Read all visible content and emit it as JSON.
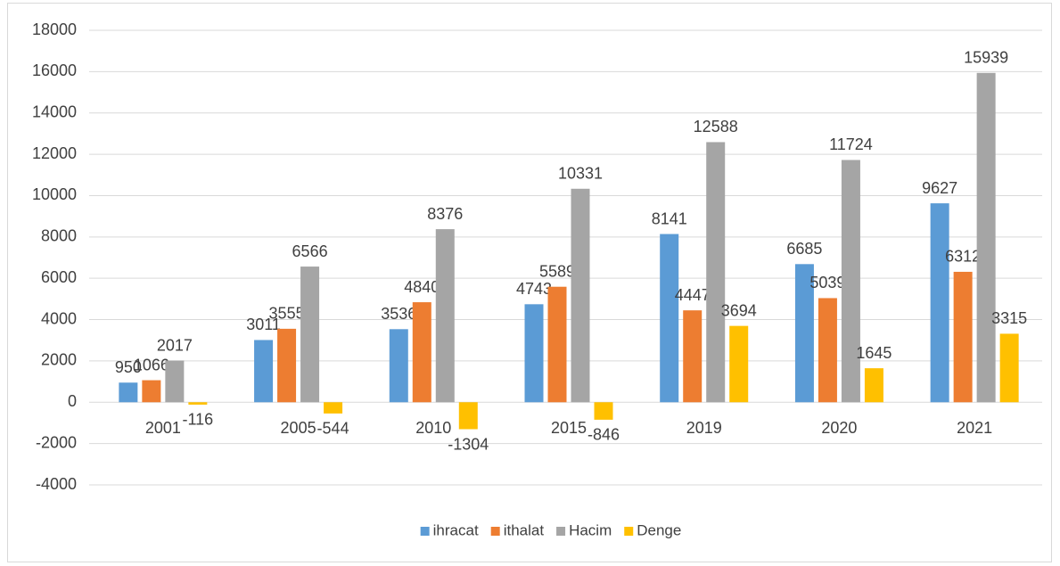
{
  "chart_data": {
    "type": "bar",
    "categories": [
      "2001",
      "2005",
      "2010",
      "2015",
      "2019",
      "2020",
      "2021"
    ],
    "series": [
      {
        "name": "ihracat",
        "color": "#5b9bd5",
        "values": [
          950,
          3011,
          3536,
          4743,
          8141,
          6685,
          9627
        ]
      },
      {
        "name": "ithalat",
        "color": "#ed7d31",
        "values": [
          1066,
          3555,
          4840,
          5589,
          4447,
          5039,
          6312
        ]
      },
      {
        "name": "Hacim",
        "color": "#a5a5a5",
        "values": [
          2017,
          6566,
          8376,
          10331,
          12588,
          11724,
          15939
        ]
      },
      {
        "name": "Denge",
        "color": "#ffc000",
        "values": [
          -116,
          -544,
          -1304,
          -846,
          3694,
          1645,
          3315
        ]
      }
    ],
    "ylim": [
      -4000,
      18000
    ],
    "yticks": [
      -4000,
      -2000,
      0,
      2000,
      4000,
      6000,
      8000,
      10000,
      12000,
      14000,
      16000,
      18000
    ],
    "grid": true,
    "legend": "bottom"
  }
}
